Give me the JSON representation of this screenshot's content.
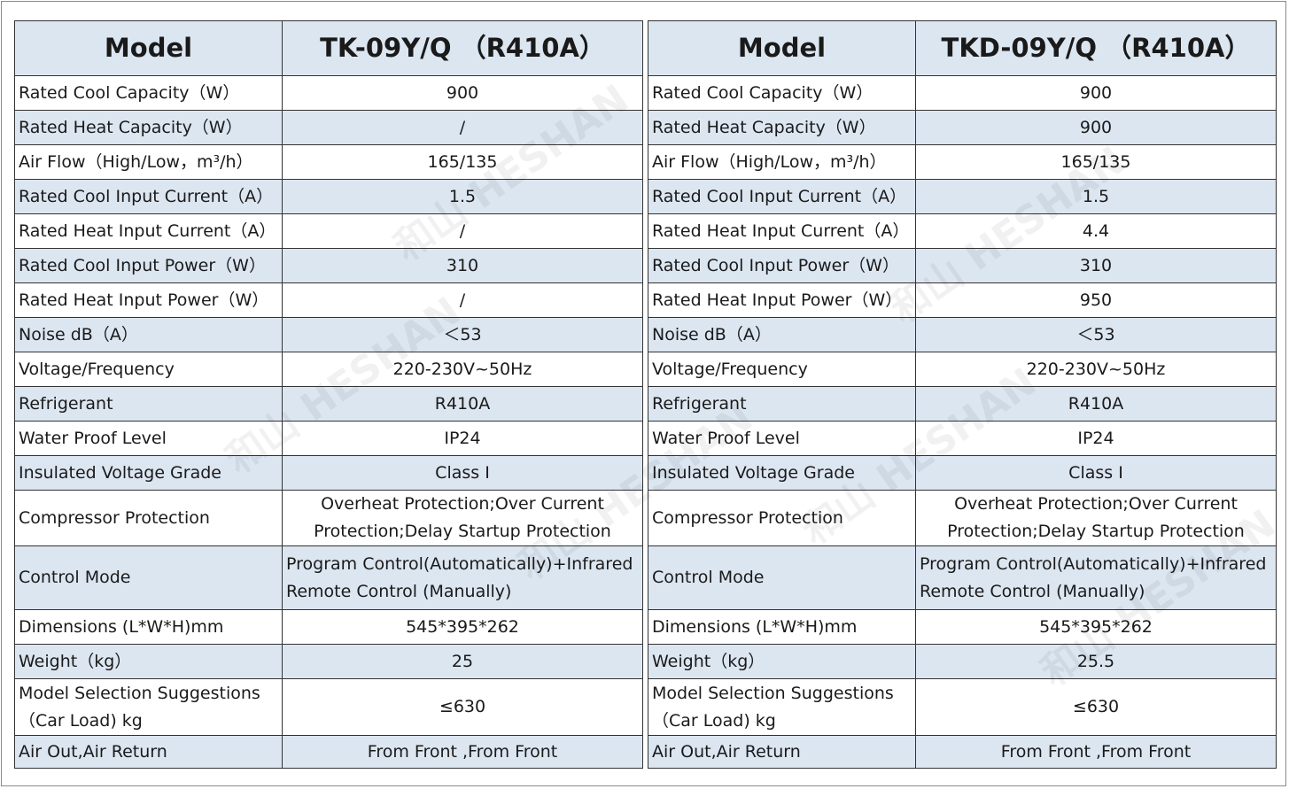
{
  "tables": [
    {
      "header_label": "Model",
      "model": "TK-09Y/Q （R410A）",
      "rows": [
        {
          "label": "Rated Cool Capacity（W）",
          "value": "900"
        },
        {
          "label": "Rated Heat Capacity（W）",
          "value": "/"
        },
        {
          "label": "Air Flow（High/Low，m³/h）",
          "value": "165/135"
        },
        {
          "label": "Rated Cool Input Current（A）",
          "value": "1.5"
        },
        {
          "label": "Rated Heat Input Current（A）",
          "value": "/"
        },
        {
          "label": "Rated Cool Input Power（W）",
          "value": "310"
        },
        {
          "label": "Rated Heat Input Power（W）",
          "value": "/"
        },
        {
          "label": "Noise dB（A）",
          "value": "＜53"
        },
        {
          "label": "Voltage/Frequency",
          "value": "220-230V~50Hz"
        },
        {
          "label": "Refrigerant",
          "value": "R410A"
        },
        {
          "label": "Water Proof Level",
          "value": "IP24"
        },
        {
          "label": "Insulated Voltage Grade",
          "value": "Class I"
        },
        {
          "label": "Compressor Protection",
          "value": "Overheat Protection;Over Current Protection;Delay Startup Protection"
        },
        {
          "label": "Control Mode",
          "value": "Program Control(Automatically)+Infrared Remote Control (Manually)"
        },
        {
          "label": "Dimensions (L*W*H)mm",
          "value": "545*395*262"
        },
        {
          "label": "Weight（kg）",
          "value": "25"
        },
        {
          "label": "Model Selection Suggestions（Car Load) kg",
          "value": "≤630"
        },
        {
          "label": "Air Out,Air Return",
          "value": "From Front ,From Front"
        }
      ]
    },
    {
      "header_label": "Model",
      "model": "TKD-09Y/Q （R410A）",
      "rows": [
        {
          "label": "Rated Cool Capacity（W）",
          "value": "900"
        },
        {
          "label": "Rated Heat Capacity（W）",
          "value": "900"
        },
        {
          "label": "Air Flow（High/Low，m³/h）",
          "value": "165/135"
        },
        {
          "label": "Rated Cool Input Current（A）",
          "value": "1.5"
        },
        {
          "label": "Rated Heat Input Current（A）",
          "value": "4.4"
        },
        {
          "label": "Rated Cool Input Power（W）",
          "value": "310"
        },
        {
          "label": "Rated Heat Input Power（W）",
          "value": "950"
        },
        {
          "label": "Noise dB（A）",
          "value": "＜53"
        },
        {
          "label": "Voltage/Frequency",
          "value": "220-230V~50Hz"
        },
        {
          "label": "Refrigerant",
          "value": "R410A"
        },
        {
          "label": "Water Proof Level",
          "value": "IP24"
        },
        {
          "label": "Insulated Voltage Grade",
          "value": "Class I"
        },
        {
          "label": "Compressor Protection",
          "value": "Overheat Protection;Over Current Protection;Delay Startup Protection"
        },
        {
          "label": "Control Mode",
          "value": "Program Control(Automatically)+Infrared Remote Control (Manually)"
        },
        {
          "label": "Dimensions (L*W*H)mm",
          "value": "545*395*262"
        },
        {
          "label": "Weight（kg）",
          "value": "25.5"
        },
        {
          "label": "Model Selection Suggestions（Car Load) kg",
          "value": "≤630"
        },
        {
          "label": "Air Out,Air Return",
          "value": "From Front ,From Front"
        }
      ]
    }
  ],
  "watermark": {
    "cn": "和山",
    "en": "HESHAN"
  }
}
